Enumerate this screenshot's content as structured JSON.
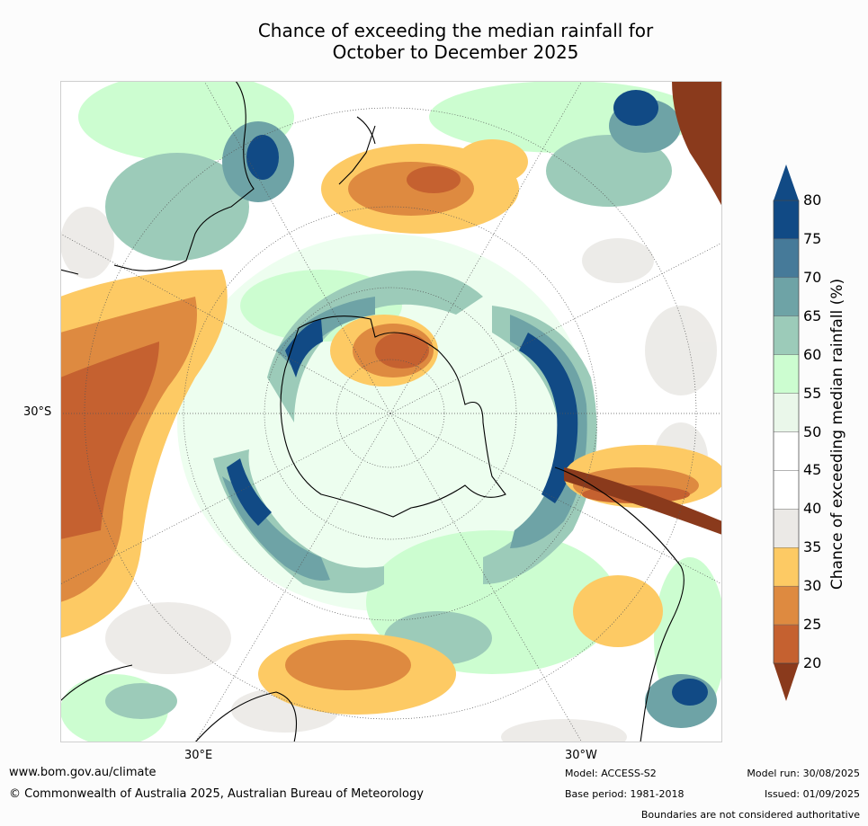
{
  "title": {
    "line1": "Chance of exceeding the median rainfall for",
    "line2": "October to December 2025"
  },
  "axis_labels": {
    "lat": "30°S",
    "lon_east": "30°E",
    "lon_west": "30°W"
  },
  "colorbar": {
    "title": "Chance of exceeding median rainfall (%)",
    "ticks": [
      "80",
      "75",
      "70",
      "65",
      "60",
      "55",
      "50",
      "45",
      "40",
      "35",
      "30",
      "25",
      "20"
    ],
    "bands": [
      {
        "range": "75-80",
        "color": "#114a85"
      },
      {
        "range": "70-75",
        "color": "#467a99"
      },
      {
        "range": "65-70",
        "color": "#6ea3a6"
      },
      {
        "range": "60-65",
        "color": "#9ccbb9"
      },
      {
        "range": "55-60",
        "color": "#ccfdd0"
      },
      {
        "range": "50-55",
        "color": "#eaf7ea"
      },
      {
        "range": "45-50",
        "color": "#ffffff"
      },
      {
        "range": "40-45",
        "color": "#ffffff"
      },
      {
        "range": "35-40",
        "color": "#ebe9e6"
      },
      {
        "range": "30-35",
        "color": "#fdca64"
      },
      {
        "range": "25-30",
        "color": "#de8a40"
      },
      {
        "range": "20-25",
        "color": "#c56130"
      }
    ],
    "over_color": "#114a85",
    "under_color": "#8a3a1c"
  },
  "footer": {
    "website": "www.bom.gov.au/climate",
    "copyright": "© Commonwealth of Australia 2025, Australian Bureau of Meteorology",
    "model": "Model: ACCESS-S2",
    "base_period": "Base period: 1981-2018",
    "model_run": "Model run: 30/08/2025",
    "issued": "Issued: 01/09/2025",
    "disclaimer": "Boundaries are not considered authoritative"
  }
}
